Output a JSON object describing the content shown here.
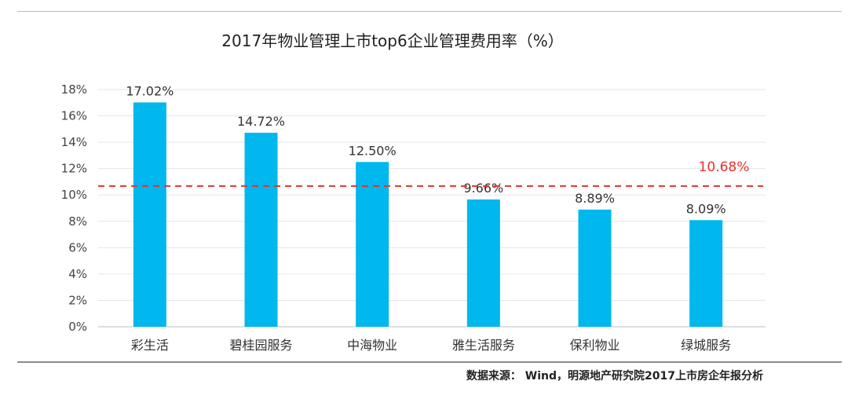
{
  "chart_data": {
    "type": "bar",
    "title": "2017年物业管理上市top6企业管理费用率（%）",
    "categories": [
      "彩生活",
      "碧桂园服务",
      "中海物业",
      "雅生活服务",
      "保利物业",
      "绿城服务"
    ],
    "values": [
      17.02,
      14.72,
      12.5,
      9.66,
      8.89,
      8.09
    ],
    "data_labels": [
      "17.02%",
      "14.72%",
      "12.50%",
      "9.66%",
      "8.89%",
      "8.09%"
    ],
    "ylim": [
      0,
      18
    ],
    "yticks": [
      "0%",
      "2%",
      "4%",
      "6%",
      "8%",
      "10%",
      "12%",
      "14%",
      "16%",
      "18%"
    ],
    "reference_line": {
      "value": 10.68,
      "label": "10.68%",
      "color": "#e8322c",
      "style": "dashed"
    },
    "bar_color": "#00b7ee",
    "grid": true,
    "xlabel": "",
    "ylabel": ""
  },
  "source": "数据来源： Wind，明源地产研究院2017上市房企年报分析"
}
